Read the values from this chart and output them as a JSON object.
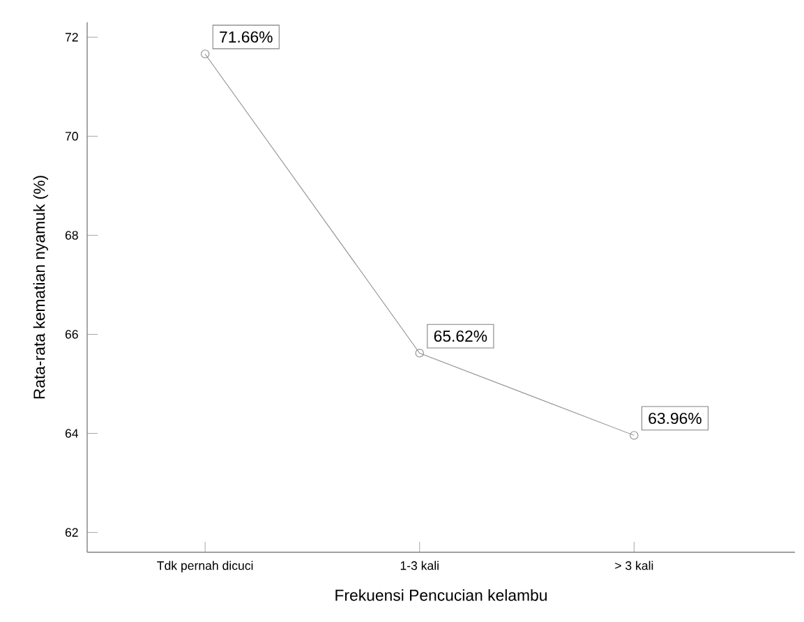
{
  "chart_data": {
    "type": "line",
    "xlabel": "Frekuensi Pencucian kelambu",
    "ylabel": "Rata-rata kematian nyamuk (%)",
    "categories": [
      "Tdk pernah dicuci",
      "1-3 kali",
      "> 3 kali"
    ],
    "values": [
      71.66,
      65.62,
      63.96
    ],
    "value_labels": [
      "71.66%",
      "65.62%",
      "63.96%"
    ],
    "color": "#8c8c8c",
    "marker": "circle",
    "ylim": [
      61.6,
      72.3
    ],
    "yticks": [
      62,
      64,
      66,
      68,
      70,
      72
    ],
    "grid": false,
    "legend": false
  }
}
